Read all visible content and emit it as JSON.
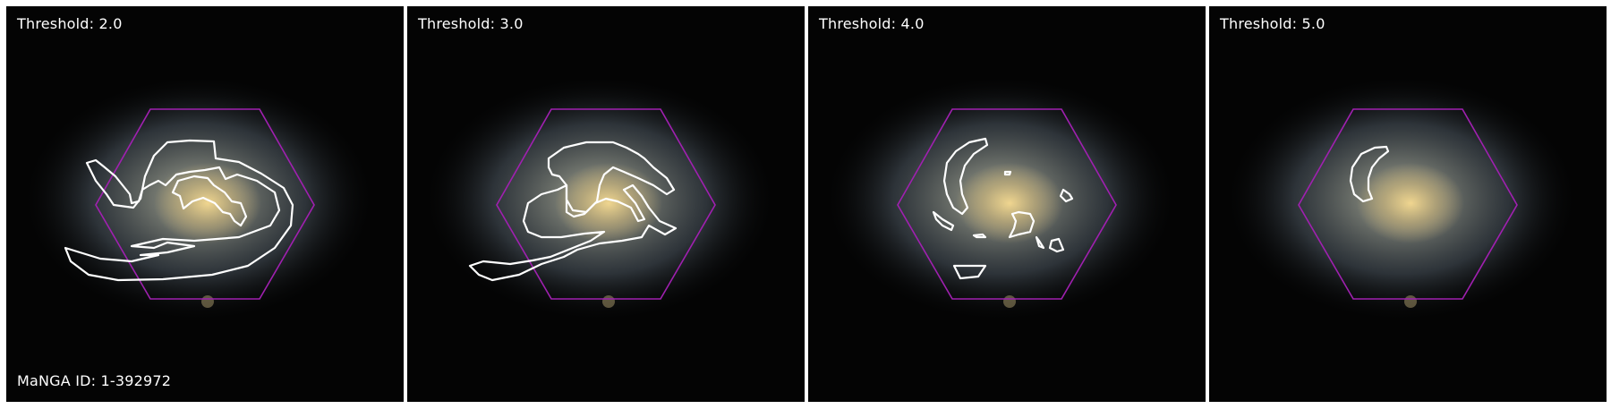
{
  "figure": {
    "manga_id_label": "MaNGA ID: 1-392972",
    "ifu_color": "#a020b0",
    "contour_color": "#ffffff",
    "panels": [
      {
        "threshold_label": "Threshold: 2.0"
      },
      {
        "threshold_label": "Threshold: 3.0"
      },
      {
        "threshold_label": "Threshold: 4.0"
      },
      {
        "threshold_label": "Threshold: 5.0"
      }
    ]
  }
}
